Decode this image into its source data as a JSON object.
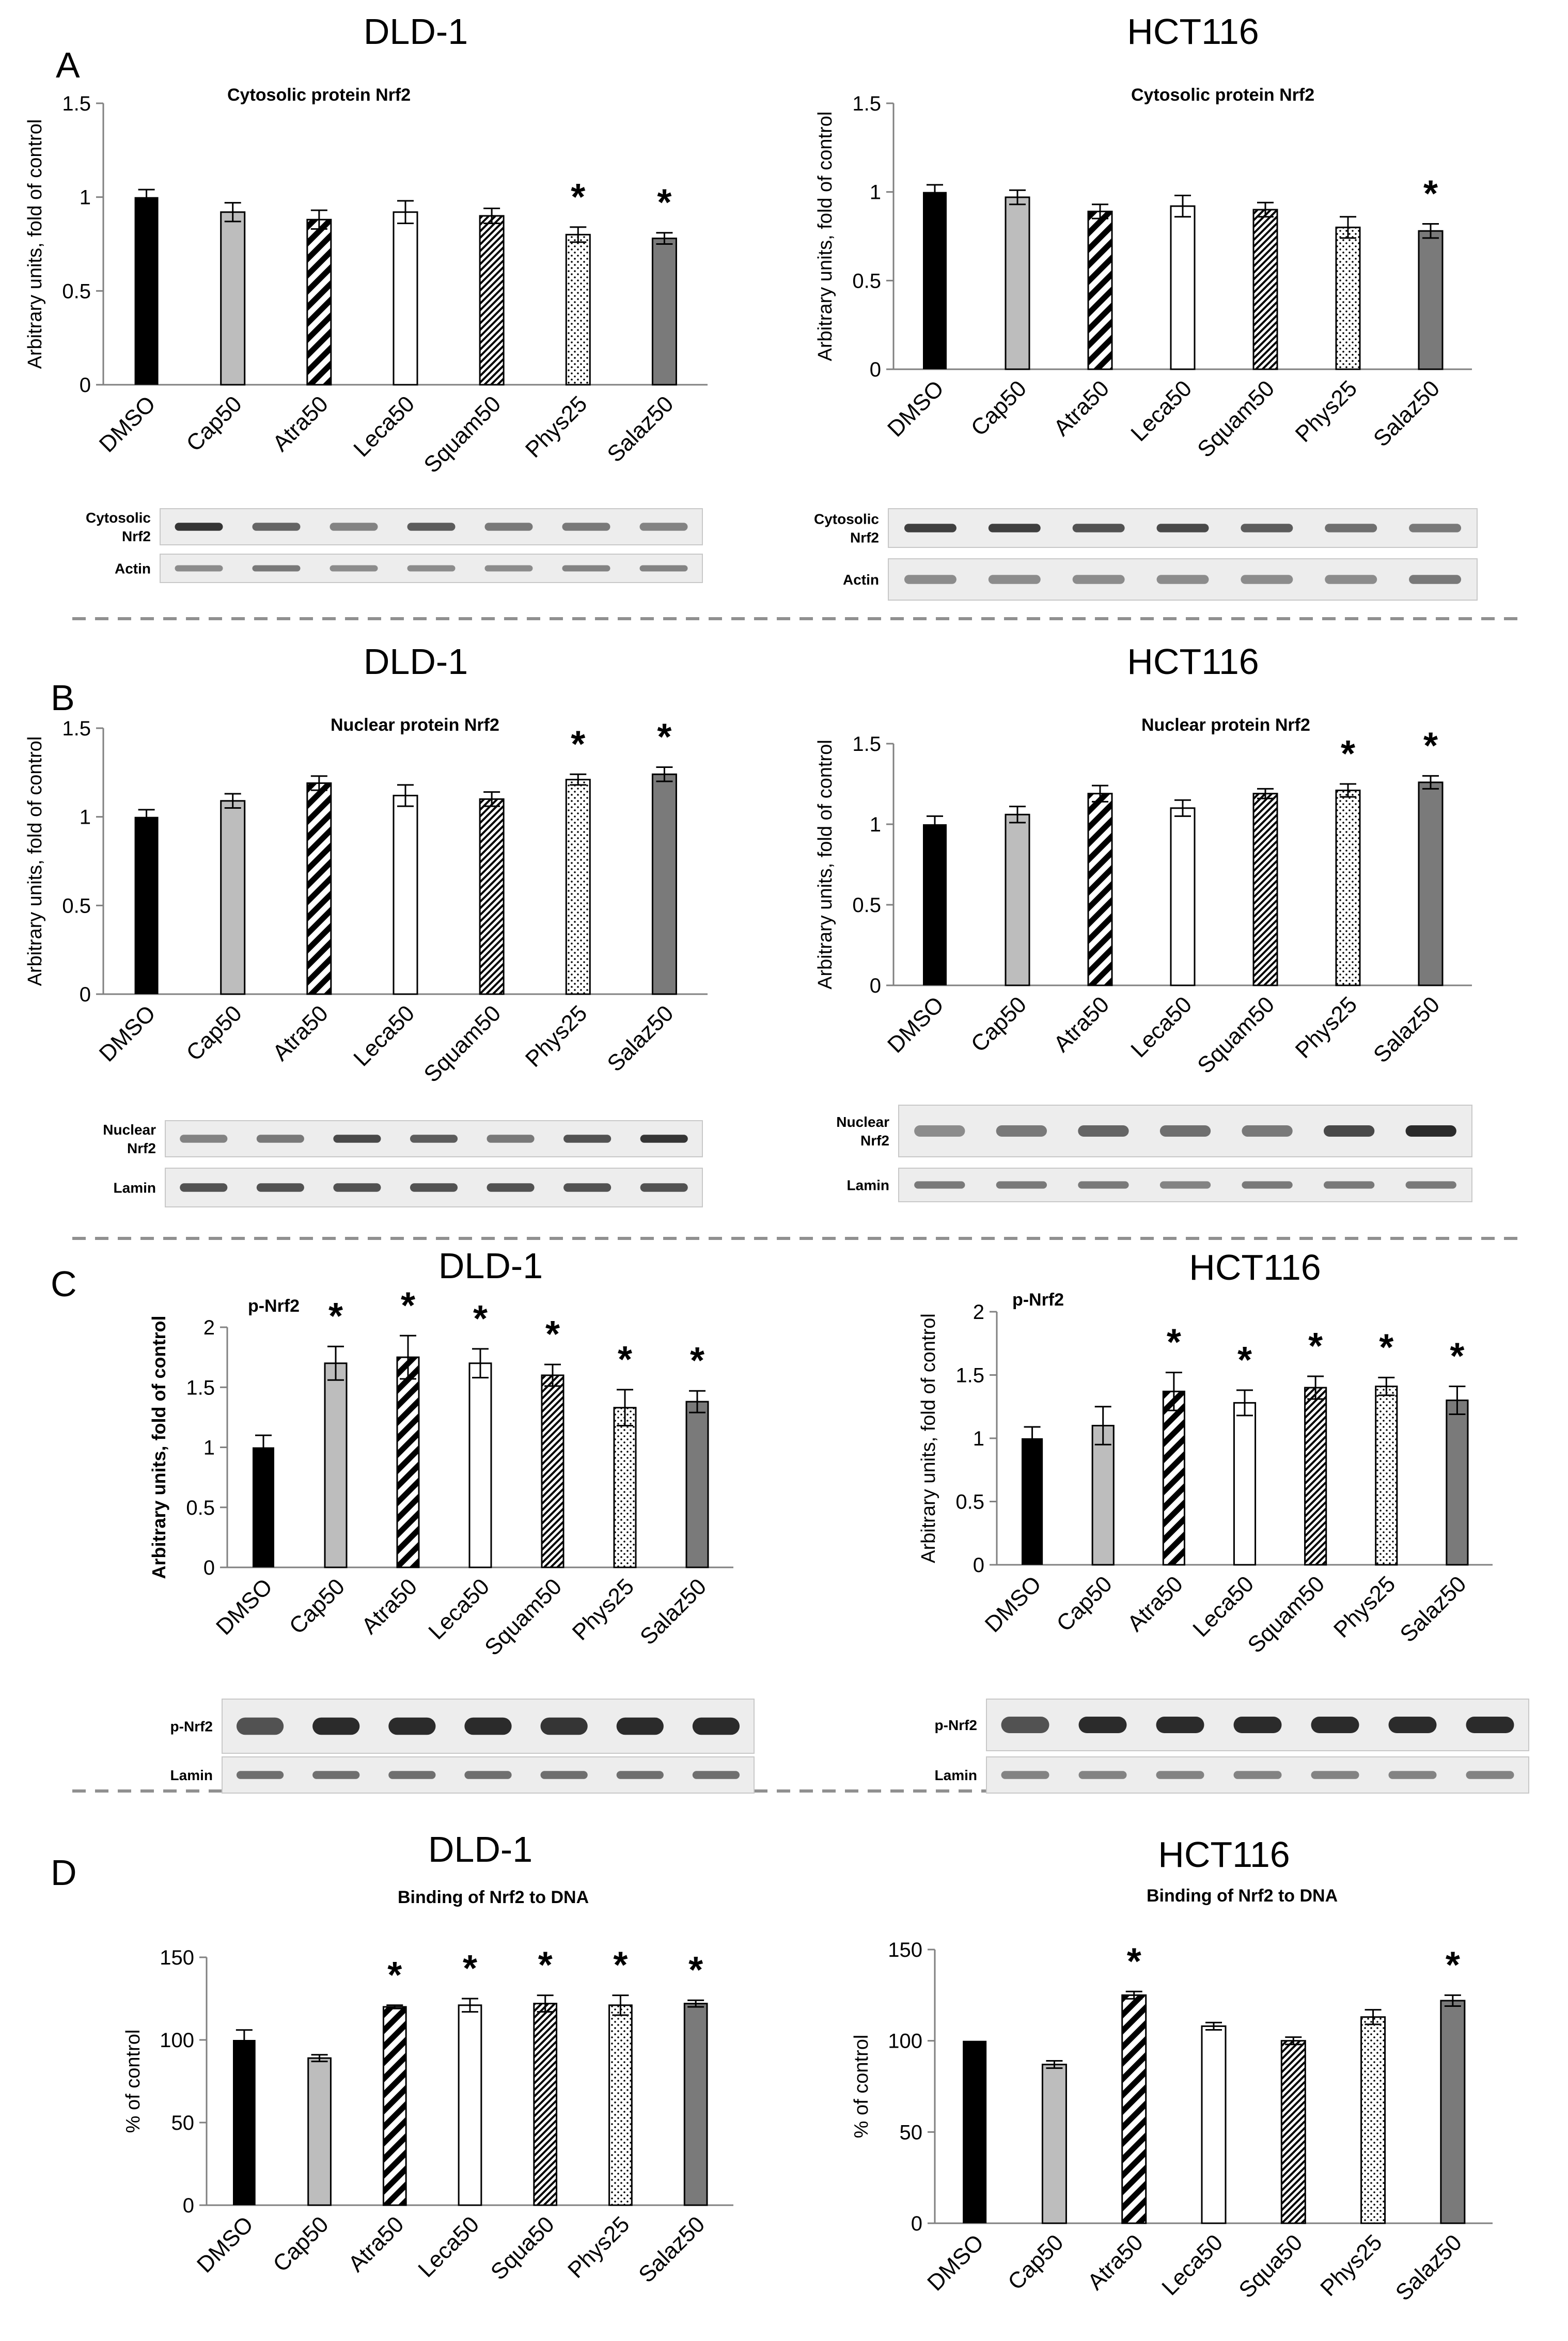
{
  "figure": {
    "panels": [
      {
        "letter": "A"
      },
      {
        "letter": "B"
      },
      {
        "letter": "C"
      },
      {
        "letter": "D"
      }
    ]
  },
  "colors": {
    "DMSO": "#000000",
    "Cap50": "#bdbdbd",
    "Leca50": "#ffffff",
    "Salaz50": "#7a7a7a",
    "axis": "#808080",
    "divider": "#909090",
    "blot_bg": "#ededed",
    "band": "#2b2b2b"
  },
  "chart_data": [
    {
      "type": "bar",
      "panel": "A",
      "cell_line": "DLD-1",
      "title": "Cytosolic protein Nrf2",
      "ylabel": "Arbitrary units, fold of control",
      "ylim": [
        0,
        1.5
      ],
      "yticks": [
        "0",
        "0.5",
        "1",
        "1.5"
      ],
      "categories": [
        "DMSO",
        "Cap50",
        "Atra50",
        "Leca50",
        "Squam50",
        "Phys25",
        "Salaz50"
      ],
      "values": [
        1.0,
        0.92,
        0.88,
        0.92,
        0.9,
        0.8,
        0.78
      ],
      "errors": [
        0.04,
        0.05,
        0.05,
        0.06,
        0.04,
        0.04,
        0.03
      ],
      "significant": [
        false,
        false,
        false,
        false,
        false,
        true,
        true
      ],
      "blots": [
        {
          "label": "Cytosolic Nrf2"
        },
        {
          "label": "Actin"
        }
      ]
    },
    {
      "type": "bar",
      "panel": "A",
      "cell_line": "HCT116",
      "title": "Cytosolic protein Nrf2",
      "ylabel": "Arbitrary units, fold of control",
      "ylim": [
        0,
        1.5
      ],
      "yticks": [
        "0",
        "0.5",
        "1",
        "1.5"
      ],
      "categories": [
        "DMSO",
        "Cap50",
        "Atra50",
        "Leca50",
        "Squam50",
        "Phys25",
        "Salaz50"
      ],
      "values": [
        1.0,
        0.97,
        0.89,
        0.92,
        0.9,
        0.8,
        0.78
      ],
      "errors": [
        0.04,
        0.04,
        0.04,
        0.06,
        0.04,
        0.06,
        0.04
      ],
      "significant": [
        false,
        false,
        false,
        false,
        false,
        false,
        true
      ],
      "blots": [
        {
          "label": "Cytosolic Nrf2"
        },
        {
          "label": "Actin"
        }
      ]
    },
    {
      "type": "bar",
      "panel": "B",
      "cell_line": "DLD-1",
      "title": "Nuclear protein Nrf2",
      "ylabel": "Arbitrary units, fold of control",
      "ylim": [
        0,
        1.5
      ],
      "yticks": [
        "0",
        "0.5",
        "1",
        "1.5"
      ],
      "categories": [
        "DMSO",
        "Cap50",
        "Atra50",
        "Leca50",
        "Squam50",
        "Phys25",
        "Salaz50"
      ],
      "values": [
        1.0,
        1.09,
        1.19,
        1.12,
        1.1,
        1.21,
        1.24
      ],
      "errors": [
        0.04,
        0.04,
        0.04,
        0.06,
        0.04,
        0.03,
        0.04
      ],
      "significant": [
        false,
        false,
        false,
        false,
        false,
        true,
        true
      ],
      "blots": [
        {
          "label": "Nuclear Nrf2"
        },
        {
          "label": "Lamin"
        }
      ]
    },
    {
      "type": "bar",
      "panel": "B",
      "cell_line": "HCT116",
      "title": "Nuclear protein Nrf2",
      "ylabel": "Arbitrary units, fold of control",
      "ylim": [
        0,
        1.5
      ],
      "yticks": [
        "0",
        "0.5",
        "1",
        "1.5"
      ],
      "categories": [
        "DMSO",
        "Cap50",
        "Atra50",
        "Leca50",
        "Squam50",
        "Phys25",
        "Salaz50"
      ],
      "values": [
        1.0,
        1.06,
        1.19,
        1.1,
        1.19,
        1.21,
        1.26
      ],
      "errors": [
        0.05,
        0.05,
        0.05,
        0.05,
        0.03,
        0.04,
        0.04
      ],
      "significant": [
        false,
        false,
        false,
        false,
        false,
        true,
        true
      ],
      "blots": [
        {
          "label": "Nuclear Nrf2"
        },
        {
          "label": "Lamin"
        }
      ]
    },
    {
      "type": "bar",
      "panel": "C",
      "cell_line": "DLD-1",
      "title": "p-Nrf2",
      "ylabel": "Arbitrary units, fold of control",
      "ylim": [
        0,
        2
      ],
      "yticks": [
        "0",
        "0.5",
        "1",
        "1.5",
        "2"
      ],
      "categories": [
        "DMSO",
        "Cap50",
        "Atra50",
        "Leca50",
        "Squam50",
        "Phys25",
        "Salaz50"
      ],
      "values": [
        1.0,
        1.7,
        1.75,
        1.7,
        1.6,
        1.33,
        1.38
      ],
      "errors": [
        0.1,
        0.14,
        0.18,
        0.12,
        0.09,
        0.15,
        0.09
      ],
      "significant": [
        false,
        true,
        true,
        true,
        true,
        true,
        true
      ],
      "blots": [
        {
          "label": "p-Nrf2"
        },
        {
          "label": "Lamin"
        }
      ]
    },
    {
      "type": "bar",
      "panel": "C",
      "cell_line": "HCT116",
      "title": "p-Nrf2",
      "ylabel": "Arbitrary units, fold of control",
      "ylim": [
        0,
        2
      ],
      "yticks": [
        "0",
        "0.5",
        "1",
        "1.5",
        "2"
      ],
      "categories": [
        "DMSO",
        "Cap50",
        "Atra50",
        "Leca50",
        "Squam50",
        "Phys25",
        "Salaz50"
      ],
      "values": [
        1.0,
        1.1,
        1.37,
        1.28,
        1.4,
        1.41,
        1.3
      ],
      "errors": [
        0.09,
        0.15,
        0.15,
        0.1,
        0.09,
        0.07,
        0.11
      ],
      "significant": [
        false,
        false,
        true,
        true,
        true,
        true,
        true
      ],
      "blots": [
        {
          "label": "p-Nrf2"
        },
        {
          "label": "Lamin"
        }
      ]
    },
    {
      "type": "bar",
      "panel": "D",
      "cell_line": "DLD-1",
      "title": "Binding of Nrf2 to DNA",
      "ylabel": "% of control",
      "ylim": [
        0,
        150
      ],
      "yticks": [
        "0",
        "50",
        "100",
        "150"
      ],
      "categories": [
        "DMSO",
        "Cap50",
        "Atra50",
        "Leca50",
        "Squa50",
        "Phys25",
        "Salaz50"
      ],
      "values": [
        100,
        89,
        120,
        121,
        122,
        121,
        122
      ],
      "errors": [
        6,
        2,
        1,
        4,
        5,
        6,
        2
      ],
      "significant": [
        false,
        false,
        true,
        true,
        true,
        true,
        true
      ],
      "blots": []
    },
    {
      "type": "bar",
      "panel": "D",
      "cell_line": "HCT116",
      "title": "Binding of Nrf2 to DNA",
      "ylabel": "% of control",
      "ylim": [
        0,
        150
      ],
      "yticks": [
        "0",
        "50",
        "100",
        "150"
      ],
      "categories": [
        "DMSO",
        "Cap50",
        "Atra50",
        "Leca50",
        "Squa50",
        "Phys25",
        "Salaz50"
      ],
      "values": [
        100,
        87,
        125,
        108,
        100,
        113,
        122
      ],
      "errors": [
        0,
        2,
        2,
        2,
        2,
        4,
        3
      ],
      "significant": [
        false,
        false,
        true,
        false,
        false,
        false,
        true
      ],
      "blots": []
    }
  ]
}
